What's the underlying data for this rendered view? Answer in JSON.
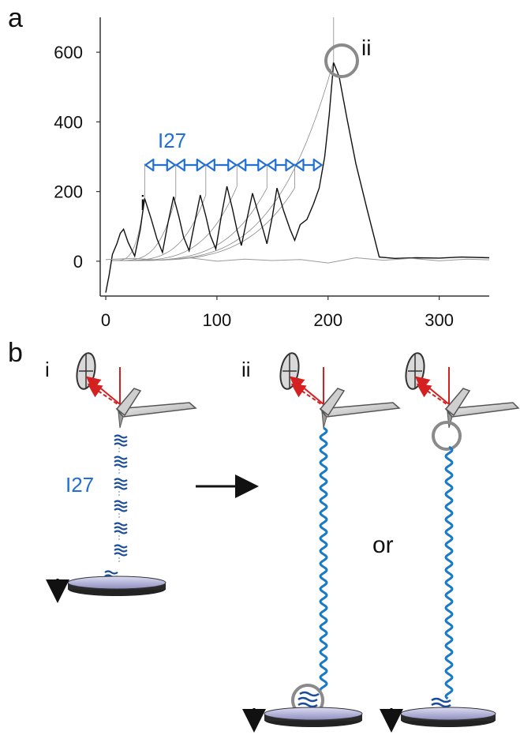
{
  "panel_a": {
    "letter": "a",
    "marker_i": "i",
    "marker_ii": "ii",
    "domain_label": "I27",
    "domain_repeats": 6
  },
  "panel_b": {
    "letter": "b",
    "state_i": "i",
    "state_ii": "ii",
    "protein_label": "I27",
    "or_text": "or"
  },
  "colors": {
    "trace": "#111111",
    "fit_curves": "#888888",
    "accent_blue": "#1f6fd6",
    "laser_red": "#d42020",
    "highlight_circle": "#8a8a8a",
    "polymer": "#1a7ac4"
  },
  "chart_data": {
    "type": "line",
    "title": "",
    "xlabel": "",
    "ylabel": "",
    "xlim": [
      -5,
      345
    ],
    "ylim": [
      -100,
      700
    ],
    "xticks": [
      0,
      100,
      200,
      300
    ],
    "yticks": [
      0,
      200,
      400,
      600
    ],
    "series": [
      {
        "role": "force-extension trace",
        "x": [
          0,
          3,
          6,
          10,
          13,
          16,
          20,
          26,
          31,
          35,
          41,
          46,
          51,
          56,
          61,
          66,
          70,
          75,
          80,
          85,
          90,
          94,
          99,
          104,
          109,
          114,
          118,
          122,
          127,
          132,
          137,
          142,
          145,
          150,
          154,
          160,
          166,
          170,
          175,
          181,
          187,
          192,
          197,
          201,
          205,
          210,
          217,
          225,
          235,
          246,
          260,
          280,
          300,
          320,
          345
        ],
        "y": [
          -90,
          -40,
          20,
          50,
          80,
          92,
          55,
          15,
          90,
          180,
          120,
          65,
          25,
          110,
          185,
          125,
          70,
          30,
          110,
          190,
          130,
          75,
          35,
          130,
          215,
          150,
          90,
          45,
          120,
          195,
          140,
          85,
          50,
          130,
          210,
          145,
          90,
          60,
          105,
          120,
          165,
          210,
          300,
          420,
          570,
          530,
          410,
          280,
          150,
          12,
          8,
          10,
          9,
          12,
          10
        ]
      },
      {
        "role": "baseline (approach trace)",
        "x": [
          0,
          25,
          50,
          75,
          100,
          125,
          150,
          175,
          200,
          225,
          250,
          275,
          300,
          325,
          345
        ],
        "y": [
          5,
          8,
          3,
          10,
          0,
          6,
          2,
          5,
          -5,
          10,
          3,
          8,
          1,
          6,
          4
        ]
      }
    ],
    "domain_unfolding_peaks_x": [
      35,
      63,
      90,
      118,
      145,
      170
    ],
    "rupture_peak": {
      "x": 205,
      "y": 575
    }
  }
}
